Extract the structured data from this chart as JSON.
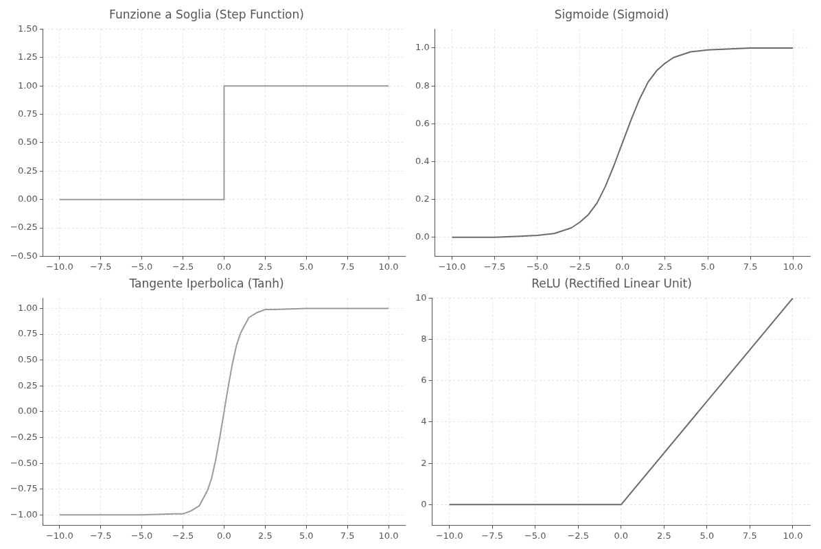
{
  "chart_data": [
    {
      "type": "line",
      "title": "Funzione a Soglia (Step Function)",
      "grid": true,
      "xlim": [
        -11,
        11
      ],
      "ylim": [
        -0.5,
        1.5
      ],
      "xticks": [
        {
          "value": -10,
          "label": "−10.0"
        },
        {
          "value": -7.5,
          "label": "−7.5"
        },
        {
          "value": -5,
          "label": "−5.0"
        },
        {
          "value": -2.5,
          "label": "−2.5"
        },
        {
          "value": 0,
          "label": "0.0"
        },
        {
          "value": 2.5,
          "label": "2.5"
        },
        {
          "value": 5,
          "label": "5.0"
        },
        {
          "value": 7.5,
          "label": "7.5"
        },
        {
          "value": 10,
          "label": "10.0"
        }
      ],
      "yticks": [
        {
          "value": -0.5,
          "label": "−0.50"
        },
        {
          "value": -0.25,
          "label": "−0.25"
        },
        {
          "value": 0,
          "label": "0.00"
        },
        {
          "value": 0.25,
          "label": "0.25"
        },
        {
          "value": 0.5,
          "label": "0.50"
        },
        {
          "value": 0.75,
          "label": "0.75"
        },
        {
          "value": 1,
          "label": "1.00"
        },
        {
          "value": 1.25,
          "label": "1.25"
        },
        {
          "value": 1.5,
          "label": "1.50"
        }
      ],
      "series": [
        {
          "color": "#9a9a9a",
          "x": [
            -10,
            0,
            0,
            10
          ],
          "values": [
            0,
            0,
            1,
            1
          ]
        }
      ]
    },
    {
      "type": "line",
      "title": "Sigmoide (Sigmoid)",
      "grid": true,
      "xlim": [
        -11,
        11
      ],
      "ylim": [
        -0.1,
        1.1
      ],
      "xticks": [
        {
          "value": -10,
          "label": "−10.0"
        },
        {
          "value": -7.5,
          "label": "−7.5"
        },
        {
          "value": -5,
          "label": "−5.0"
        },
        {
          "value": -2.5,
          "label": "−2.5"
        },
        {
          "value": 0,
          "label": "0.0"
        },
        {
          "value": 2.5,
          "label": "2.5"
        },
        {
          "value": 5,
          "label": "5.0"
        },
        {
          "value": 7.5,
          "label": "7.5"
        },
        {
          "value": 10,
          "label": "10.0"
        }
      ],
      "yticks": [
        {
          "value": 0,
          "label": "0.0"
        },
        {
          "value": 0.2,
          "label": "0.2"
        },
        {
          "value": 0.4,
          "label": "0.4"
        },
        {
          "value": 0.6,
          "label": "0.6"
        },
        {
          "value": 0.8,
          "label": "0.8"
        },
        {
          "value": 1,
          "label": "1.0"
        }
      ],
      "series": [
        {
          "color": "#6a6a6a",
          "x": [
            -10,
            -7.5,
            -5,
            -4,
            -3,
            -2.5,
            -2,
            -1.5,
            -1,
            -0.5,
            0,
            0.5,
            1,
            1.5,
            2,
            2.5,
            3,
            4,
            5,
            7.5,
            10
          ],
          "values": [
            0,
            0,
            0.01,
            0.02,
            0.05,
            0.08,
            0.12,
            0.18,
            0.27,
            0.38,
            0.5,
            0.62,
            0.73,
            0.82,
            0.88,
            0.92,
            0.95,
            0.98,
            0.99,
            1,
            1
          ]
        }
      ]
    },
    {
      "type": "line",
      "title": "Tangente Iperbolica (Tanh)",
      "grid": true,
      "xlim": [
        -11,
        11
      ],
      "ylim": [
        -1.1,
        1.1
      ],
      "xticks": [
        {
          "value": -10,
          "label": "−10.0"
        },
        {
          "value": -7.5,
          "label": "−7.5"
        },
        {
          "value": -5,
          "label": "−5.0"
        },
        {
          "value": -2.5,
          "label": "−2.5"
        },
        {
          "value": 0,
          "label": "0.0"
        },
        {
          "value": 2.5,
          "label": "2.5"
        },
        {
          "value": 5,
          "label": "5.0"
        },
        {
          "value": 7.5,
          "label": "7.5"
        },
        {
          "value": 10,
          "label": "10.0"
        }
      ],
      "yticks": [
        {
          "value": -1,
          "label": "−1.00"
        },
        {
          "value": -0.75,
          "label": "−0.75"
        },
        {
          "value": -0.5,
          "label": "−0.50"
        },
        {
          "value": -0.25,
          "label": "−0.25"
        },
        {
          "value": 0,
          "label": "0.00"
        },
        {
          "value": 0.25,
          "label": "0.25"
        },
        {
          "value": 0.5,
          "label": "0.50"
        },
        {
          "value": 0.75,
          "label": "0.75"
        },
        {
          "value": 1,
          "label": "1.00"
        }
      ],
      "series": [
        {
          "color": "#9a9a9a",
          "x": [
            -10,
            -5,
            -3,
            -2.5,
            -2,
            -1.5,
            -1,
            -0.75,
            -0.5,
            -0.25,
            0,
            0.25,
            0.5,
            0.75,
            1,
            1.5,
            2,
            2.5,
            3,
            5,
            10
          ],
          "values": [
            -1,
            -1,
            -0.99,
            -0.99,
            -0.96,
            -0.91,
            -0.76,
            -0.64,
            -0.46,
            -0.24,
            0,
            0.24,
            0.46,
            0.64,
            0.76,
            0.91,
            0.96,
            0.99,
            0.99,
            1,
            1
          ]
        }
      ]
    },
    {
      "type": "line",
      "title": "ReLU (Rectified Linear Unit)",
      "grid": true,
      "xlim": [
        -11,
        11
      ],
      "ylim": [
        -1,
        10
      ],
      "xticks": [
        {
          "value": -10,
          "label": "−10.0"
        },
        {
          "value": -7.5,
          "label": "−7.5"
        },
        {
          "value": -5,
          "label": "−5.0"
        },
        {
          "value": -2.5,
          "label": "−2.5"
        },
        {
          "value": 0,
          "label": "0.0"
        },
        {
          "value": 2.5,
          "label": "2.5"
        },
        {
          "value": 5,
          "label": "5.0"
        },
        {
          "value": 7.5,
          "label": "7.5"
        },
        {
          "value": 10,
          "label": "10.0"
        }
      ],
      "yticks": [
        0,
        2,
        4,
        6,
        8,
        10
      ],
      "series": [
        {
          "color": "#6a6a6a",
          "x": [
            -10,
            0,
            10
          ],
          "values": [
            0,
            0,
            10
          ]
        }
      ]
    }
  ]
}
